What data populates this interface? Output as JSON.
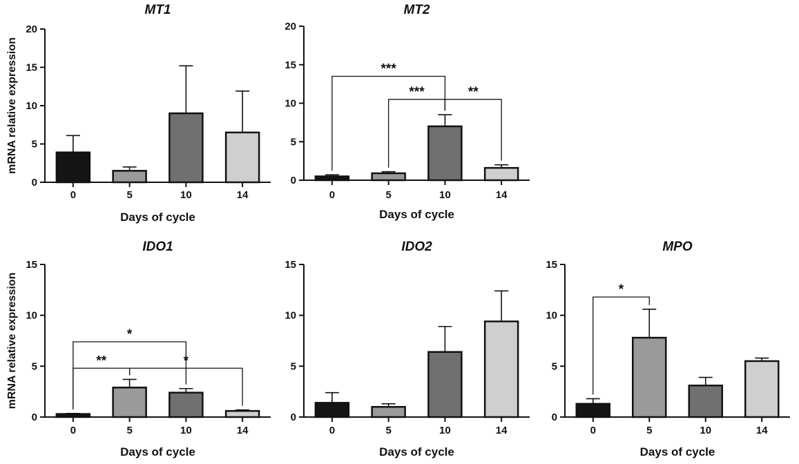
{
  "chart_data": [
    {
      "type": "bar",
      "title": "MT1",
      "xlabel": "Days of cycle",
      "ylabel": "mRNA relative expression",
      "categories": [
        "0",
        "5",
        "10",
        "14"
      ],
      "values": [
        3.9,
        1.5,
        9.0,
        6.5
      ],
      "error_upper": [
        6.1,
        2.0,
        15.2,
        11.9
      ],
      "colors": [
        "#141414",
        "#9a9a9a",
        "#707070",
        "#cfcfcf"
      ],
      "ylim": [
        0,
        20
      ],
      "yticks": [
        "0",
        "5",
        "10",
        "15",
        "20"
      ],
      "significance": []
    },
    {
      "type": "bar",
      "title": "MT2",
      "xlabel": "Days of cycle",
      "ylabel": "",
      "categories": [
        "0",
        "5",
        "10",
        "14"
      ],
      "values": [
        0.5,
        0.9,
        7.0,
        1.6
      ],
      "error_upper": [
        0.7,
        1.1,
        8.5,
        2.0
      ],
      "colors": [
        "#141414",
        "#9a9a9a",
        "#707070",
        "#cfcfcf"
      ],
      "ylim": [
        0,
        20
      ],
      "yticks": [
        "0",
        "5",
        "10",
        "15",
        "20"
      ],
      "significance": [
        {
          "from": "0",
          "to": "10",
          "y": 13.5,
          "label": "***"
        },
        {
          "from": "5",
          "to": "10",
          "y": 10.5,
          "label": "***"
        },
        {
          "from": "10",
          "to": "14",
          "y": 10.5,
          "label": "**"
        }
      ]
    },
    {
      "type": "bar",
      "title": "IDO1",
      "xlabel": "Days of cycle",
      "ylabel": "mRNA relative expression",
      "categories": [
        "0",
        "5",
        "10",
        "14"
      ],
      "values": [
        0.3,
        2.9,
        2.4,
        0.6
      ],
      "error_upper": [
        0.35,
        3.7,
        2.8,
        0.7
      ],
      "colors": [
        "#141414",
        "#9a9a9a",
        "#707070",
        "#cfcfcf"
      ],
      "ylim": [
        0,
        15
      ],
      "yticks": [
        "0",
        "5",
        "10",
        "15"
      ],
      "significance": [
        {
          "from": "0",
          "to": "10",
          "y": 7.4,
          "label": "*"
        },
        {
          "from": "0",
          "to": "5",
          "y": 4.8,
          "label": "**"
        },
        {
          "from": "5",
          "to": "14",
          "y": 4.8,
          "label": "*"
        }
      ]
    },
    {
      "type": "bar",
      "title": "IDO2",
      "xlabel": "Days of cycle",
      "ylabel": "",
      "categories": [
        "0",
        "5",
        "10",
        "14"
      ],
      "values": [
        1.4,
        1.0,
        6.4,
        9.4
      ],
      "error_upper": [
        2.4,
        1.3,
        8.9,
        12.4
      ],
      "colors": [
        "#141414",
        "#9a9a9a",
        "#707070",
        "#cfcfcf"
      ],
      "ylim": [
        0,
        15
      ],
      "yticks": [
        "0",
        "5",
        "10",
        "15"
      ],
      "significance": []
    },
    {
      "type": "bar",
      "title": "MPO",
      "xlabel": "Days of cycle",
      "ylabel": "",
      "categories": [
        "0",
        "5",
        "10",
        "14"
      ],
      "values": [
        1.3,
        7.8,
        3.1,
        5.5
      ],
      "error_upper": [
        1.8,
        10.6,
        3.9,
        5.8
      ],
      "colors": [
        "#141414",
        "#9a9a9a",
        "#707070",
        "#cfcfcf"
      ],
      "ylim": [
        0,
        15
      ],
      "yticks": [
        "0",
        "5",
        "10",
        "15"
      ],
      "significance": [
        {
          "from": "0",
          "to": "5",
          "y": 11.8,
          "label": "*"
        }
      ]
    }
  ]
}
